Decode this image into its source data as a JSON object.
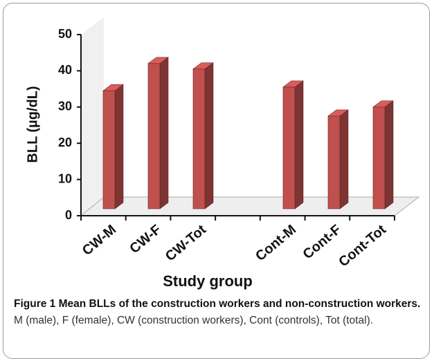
{
  "chart_data": {
    "type": "bar3d",
    "y_label": "BLL (µg/dL)",
    "x_label": "Study group",
    "categories": [
      "CW-M",
      "CW-F",
      "CW-Tot",
      null,
      "Cont-M",
      "Cont-F",
      "Cont-Tot"
    ],
    "values": [
      34.5,
      42,
      40.5,
      null,
      35.5,
      27.5,
      30
    ],
    "color": "#c0504d",
    "ylim": [
      0,
      50
    ],
    "yticks": [
      0,
      10,
      20,
      30,
      40,
      50
    ]
  },
  "caption": {
    "label": "Figure 1 Mean BLLs of the construction workers and non-construction workers.",
    "text": "M (male), F (female), CW (construction workers), Cont (controls), Tot (total)."
  }
}
